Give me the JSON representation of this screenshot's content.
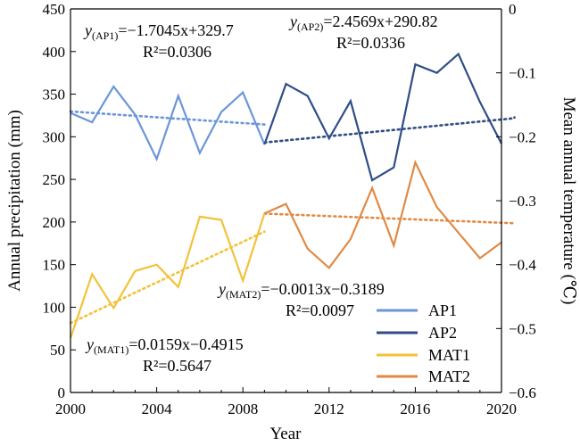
{
  "chart_data": {
    "type": "line",
    "xlabel": "Year",
    "ylabel_left": "Annual precipitation (mm)",
    "ylabel_right": "Mean annual temperature (℃)",
    "xlim": [
      2000,
      2020
    ],
    "ylim_left": [
      0,
      450
    ],
    "ylim_right": [
      -0.6,
      0
    ],
    "x_ticks": [
      2000,
      2004,
      2008,
      2012,
      2016,
      2020
    ],
    "y_left_ticks": [
      0,
      50,
      100,
      150,
      200,
      250,
      300,
      350,
      400,
      450
    ],
    "y_right_ticks": [
      0,
      -0.1,
      -0.2,
      -0.3,
      -0.4,
      -0.5,
      -0.6
    ],
    "y_right_tick_labels": [
      "0",
      "−0.1",
      "−0.2",
      "−0.3",
      "−0.4",
      "−0.5",
      "−0.6"
    ],
    "grid": false,
    "legend_position": "bottom-right",
    "colors": {
      "AP1": "#6b96d8",
      "AP2": "#2f4d86",
      "MAT1": "#f2c23a",
      "MAT2": "#e08a45"
    },
    "series": [
      {
        "name": "AP1",
        "axis": "left",
        "x": [
          2000,
          2001,
          2002,
          2003,
          2004,
          2005,
          2006,
          2007,
          2008,
          2009
        ],
        "y": [
          328,
          317,
          359,
          326,
          274,
          348,
          281,
          329,
          352,
          291
        ]
      },
      {
        "name": "AP2",
        "axis": "left",
        "x": [
          2009,
          2010,
          2011,
          2012,
          2013,
          2014,
          2015,
          2016,
          2017,
          2018,
          2019,
          2020
        ],
        "y": [
          291,
          362,
          348,
          298,
          342,
          249,
          264,
          385,
          375,
          397,
          341,
          292
        ]
      },
      {
        "name": "MAT1",
        "axis": "right",
        "x": [
          2000,
          2001,
          2002,
          2003,
          2004,
          2005,
          2006,
          2007,
          2008,
          2009
        ],
        "y": [
          -0.515,
          -0.415,
          -0.468,
          -0.41,
          -0.4,
          -0.435,
          -0.325,
          -0.33,
          -0.425,
          -0.32
        ]
      },
      {
        "name": "MAT2",
        "axis": "right",
        "x": [
          2009,
          2010,
          2011,
          2012,
          2013,
          2014,
          2015,
          2016,
          2017,
          2018,
          2019,
          2020
        ],
        "y": [
          -0.32,
          -0.305,
          -0.375,
          -0.405,
          -0.36,
          -0.28,
          -0.37,
          -0.24,
          -0.31,
          -0.35,
          -0.39,
          -0.365
        ]
      }
    ],
    "trendlines": [
      {
        "name": "AP1",
        "axis": "left",
        "x": [
          2000,
          2009
        ],
        "slope": -1.7045,
        "intercept": 329.7,
        "origin": 2000
      },
      {
        "name": "AP2",
        "axis": "left",
        "x": [
          2009,
          2021
        ],
        "slope": 2.4569,
        "intercept": 290.82,
        "origin": 2008
      },
      {
        "name": "MAT1",
        "axis": "right",
        "x": [
          2000,
          2009
        ],
        "slope": 0.0159,
        "intercept": -0.4915,
        "origin": 2000
      },
      {
        "name": "MAT2",
        "axis": "right",
        "x": [
          2009,
          2021
        ],
        "slope": -0.0013,
        "intercept": -0.3189,
        "origin": 2008
      }
    ],
    "annotations": [
      {
        "id": "ap1",
        "y": "y",
        "sub": "(AP1)",
        "rhs": "=−1.7045x+329.7",
        "r2": "R²=0.0306"
      },
      {
        "id": "ap2",
        "y": "y",
        "sub": "(AP2)",
        "rhs": "=2.4569x+290.82",
        "r2": "R²=0.0336"
      },
      {
        "id": "mat2",
        "y": "y",
        "sub": "(MAT2)",
        "rhs": "=−0.0013x−0.3189",
        "r2": "R²=0.0097"
      },
      {
        "id": "mat1",
        "y": "y",
        "sub": "(MAT1)",
        "rhs": "=0.0159x−0.4915",
        "r2": "R²=0.5647"
      }
    ]
  }
}
